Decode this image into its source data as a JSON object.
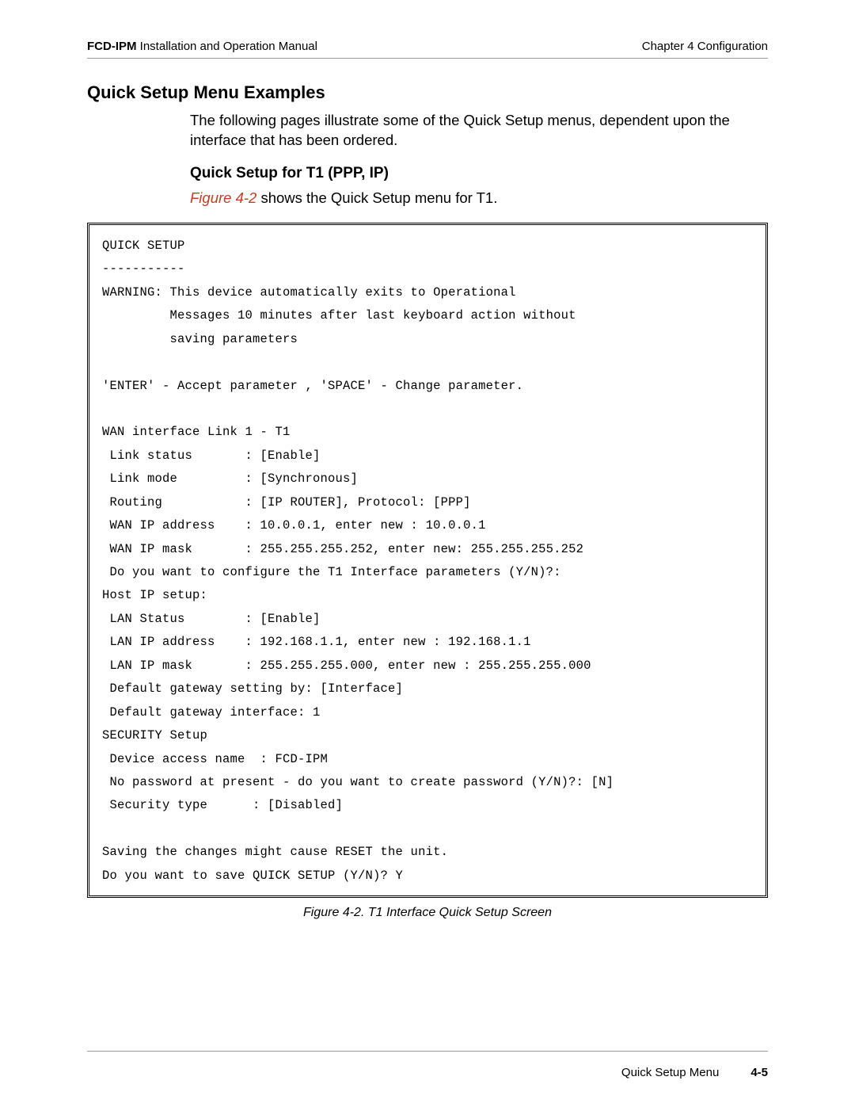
{
  "header": {
    "product": "FCD-IPM",
    "doc_title": "Installation and Operation Manual",
    "chapter": "Chapter 4  Configuration"
  },
  "section": {
    "title": "Quick Setup Menu Examples",
    "intro": "The following pages illustrate some of the Quick Setup menus, dependent upon the interface that has been ordered.",
    "sub_title": "Quick Setup for T1 (PPP, IP)",
    "fig_ref": "Figure 4-2",
    "fig_sentence_tail": " shows the Quick Setup menu for T1."
  },
  "terminal": {
    "line01": "QUICK SETUP",
    "line02": "-----------",
    "line03": "WARNING: This device automatically exits to Operational",
    "line04": "         Messages 10 minutes after last keyboard action without",
    "line05": "         saving parameters",
    "line06": "",
    "line07": "'ENTER' - Accept parameter , 'SPACE' - Change parameter.",
    "line08": "",
    "line09": "WAN interface Link 1 - T1",
    "line10": " Link status       : [Enable]",
    "line11": " Link mode         : [Synchronous]",
    "line12": " Routing           : [IP ROUTER], Protocol: [PPP]",
    "line13": " WAN IP address    : 10.0.0.1, enter new : 10.0.0.1",
    "line14": " WAN IP mask       : 255.255.255.252, enter new: 255.255.255.252",
    "line15": " Do you want to configure the T1 Interface parameters (Y/N)?:",
    "line16": "Host IP setup:",
    "line17": " LAN Status        : [Enable]",
    "line18": " LAN IP address    : 192.168.1.1, enter new : 192.168.1.1",
    "line19": " LAN IP mask       : 255.255.255.000, enter new : 255.255.255.000",
    "line20": " Default gateway setting by: [Interface]",
    "line21": " Default gateway interface: 1",
    "line22": "SECURITY Setup",
    "line23": " Device access name  : FCD-IPM ",
    "line24": " No password at present - do you want to create password (Y/N)?: [N]",
    "line25": " Security type      : [Disabled]",
    "line26": "",
    "line27": "Saving the changes might cause RESET the unit.",
    "line28": "Do you want to save QUICK SETUP (Y/N)? Y"
  },
  "caption": "Figure 4-2.  T1 Interface Quick Setup Screen",
  "footer": {
    "section": "Quick Setup Menu",
    "page": "4-5"
  },
  "style": {
    "page_bg": "#ffffff",
    "text_color": "#000000",
    "rule_color": "#999999",
    "ref_color": "#c04020",
    "mono_font": "Courier New",
    "body_font": "Segoe UI",
    "fontsize_body": 18.5,
    "fontsize_mono": 15.5,
    "box_border": "3px double #000"
  }
}
